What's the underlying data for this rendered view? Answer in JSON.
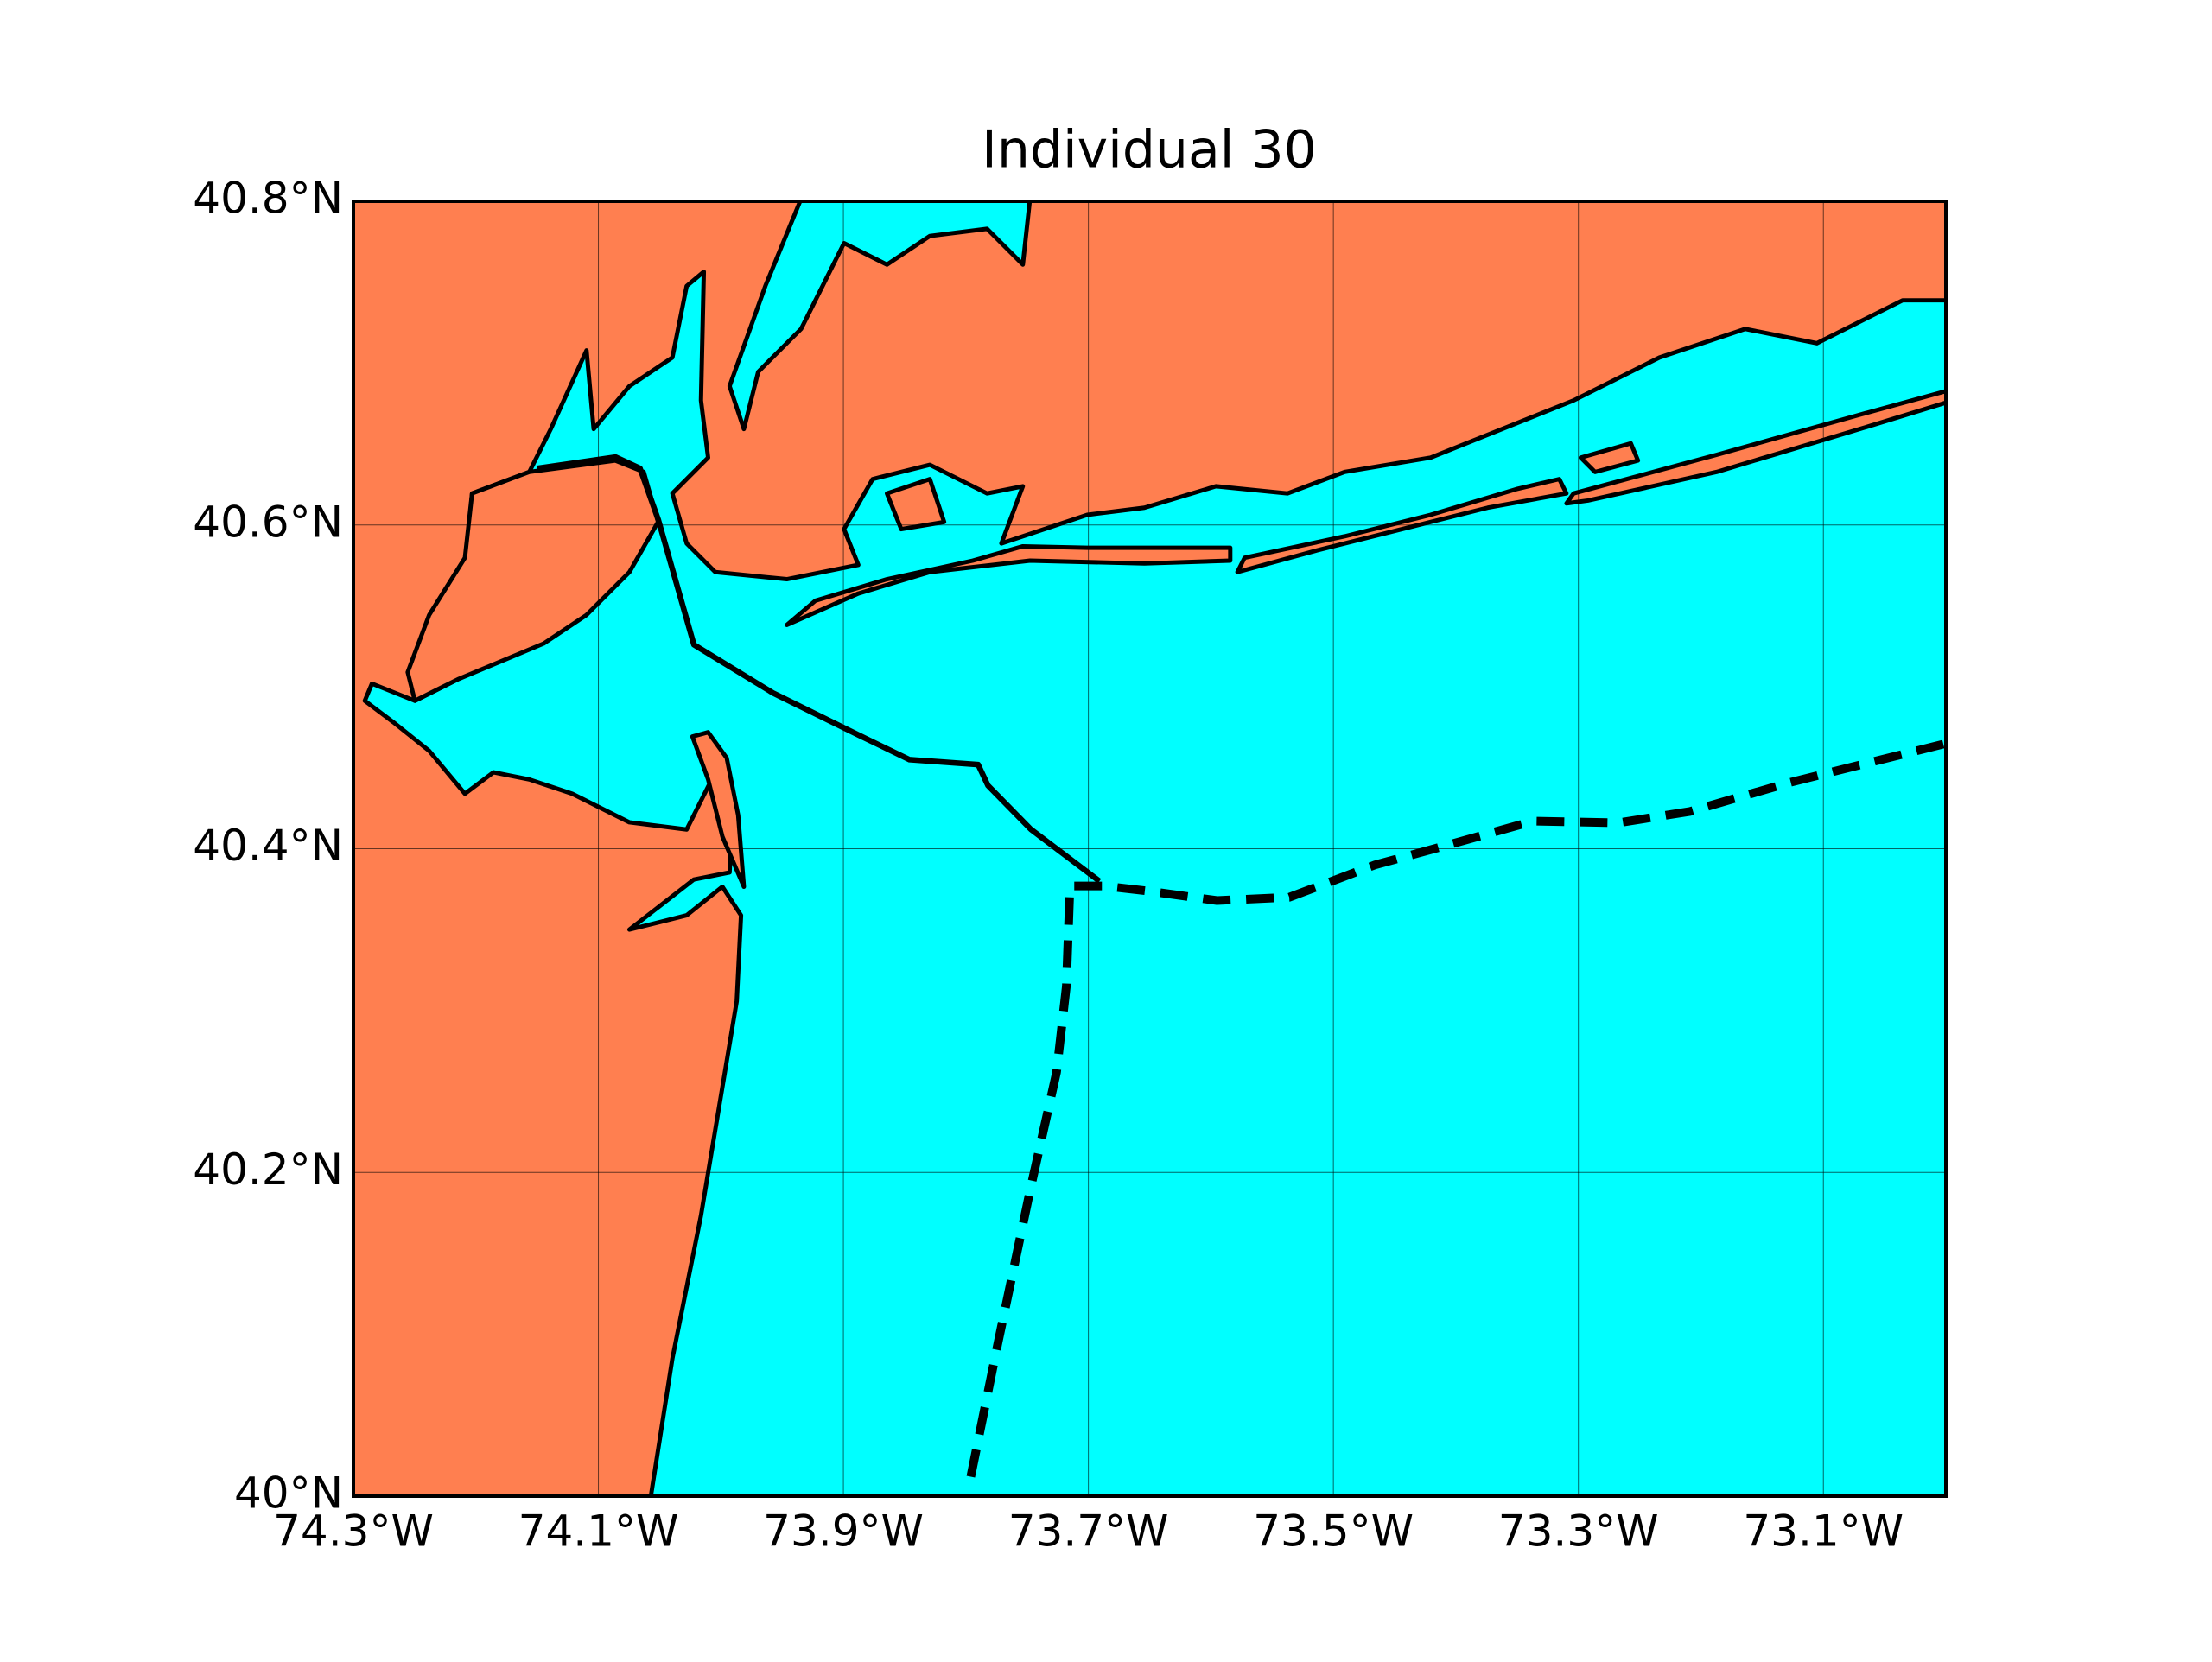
{
  "chart_data": {
    "type": "map",
    "title": "Individual 30",
    "xlim": [
      -74.3,
      -73.0
    ],
    "ylim": [
      40.0,
      40.8
    ],
    "xticks": [
      {
        "value": -74.3,
        "label": "74.3°W"
      },
      {
        "value": -74.1,
        "label": "74.1°W"
      },
      {
        "value": -73.9,
        "label": "73.9°W"
      },
      {
        "value": -73.7,
        "label": "73.7°W"
      },
      {
        "value": -73.5,
        "label": "73.5°W"
      },
      {
        "value": -73.3,
        "label": "73.3°W"
      },
      {
        "value": -73.1,
        "label": "73.1°W"
      }
    ],
    "yticks": [
      {
        "value": 40.0,
        "label": "40°N"
      },
      {
        "value": 40.2,
        "label": "40.2°N"
      },
      {
        "value": 40.4,
        "label": "40.4°N"
      },
      {
        "value": 40.6,
        "label": "40.6°N"
      },
      {
        "value": 40.8,
        "label": "40.8°N"
      }
    ],
    "grid": true,
    "land_color": "#ff7f50",
    "water_color": "#00ffff",
    "series": [
      {
        "style": "solid",
        "color": "#000000",
        "x": [
          -74.15,
          -74.086,
          -74.066,
          -74.051,
          -74.022,
          -73.957,
          -73.887,
          -73.846,
          -73.79,
          -73.782,
          -73.747,
          -73.691
        ],
        "y": [
          40.635,
          40.642,
          40.635,
          40.603,
          40.526,
          40.496,
          40.47,
          40.455,
          40.452,
          40.439,
          40.412,
          40.38
        ]
      },
      {
        "style": "dashed",
        "color": "#000000",
        "x": [
          -73.796,
          -73.774,
          -73.747,
          -73.726,
          -73.718,
          -73.715,
          -73.688,
          -73.653,
          -73.595,
          -73.536,
          -73.466,
          -73.408,
          -73.337,
          -73.267,
          -73.209,
          -73.127,
          -73.0
        ],
        "y": [
          40.012,
          40.094,
          40.191,
          40.262,
          40.315,
          40.377,
          40.377,
          40.374,
          40.368,
          40.37,
          40.39,
          40.402,
          40.417,
          40.416,
          40.423,
          40.441,
          40.465
        ]
      }
    ]
  }
}
